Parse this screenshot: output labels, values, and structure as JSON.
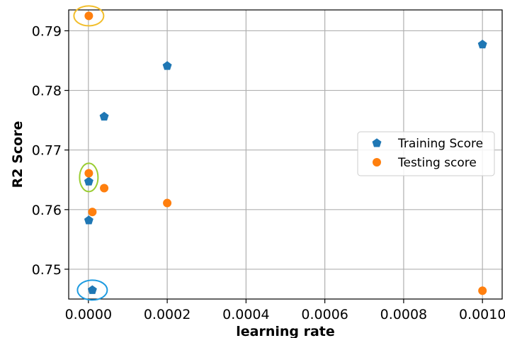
{
  "chart_data": {
    "type": "scatter",
    "title": "",
    "xlabel": "learning rate",
    "ylabel": "R2 Score",
    "xlim": [
      -5e-05,
      0.00105
    ],
    "ylim": [
      0.745,
      0.7935
    ],
    "grid": true,
    "x_ticks": [
      0.0,
      0.0002,
      0.0004,
      0.0006,
      0.0008,
      0.001
    ],
    "x_tick_labels": [
      "0.0000",
      "0.0002",
      "0.0004",
      "0.0006",
      "0.0008",
      "0.0010"
    ],
    "y_ticks": [
      0.75,
      0.76,
      0.77,
      0.78,
      0.79
    ],
    "y_tick_labels": [
      "0.75",
      "0.76",
      "0.77",
      "0.78",
      "0.79"
    ],
    "legend_position": "center-right",
    "series": [
      {
        "name": "Training Score",
        "marker": "pentagon",
        "color": "#1f77b4",
        "points": [
          {
            "x": 1e-06,
            "y": 0.7582
          },
          {
            "x": 1e-06,
            "y": 0.7647
          },
          {
            "x": 1e-05,
            "y": 0.7465
          },
          {
            "x": 4e-05,
            "y": 0.7756
          },
          {
            "x": 0.0002,
            "y": 0.7841
          },
          {
            "x": 0.001,
            "y": 0.7877
          }
        ]
      },
      {
        "name": "Testing score",
        "marker": "circle",
        "color": "#ff7f0e",
        "points": [
          {
            "x": 1e-06,
            "y": 0.7925
          },
          {
            "x": 1e-06,
            "y": 0.7661
          },
          {
            "x": 1e-05,
            "y": 0.7596
          },
          {
            "x": 4e-05,
            "y": 0.7636
          },
          {
            "x": 0.0002,
            "y": 0.7611
          },
          {
            "x": 0.001,
            "y": 0.7464
          }
        ]
      }
    ],
    "highlights": [
      {
        "name": "highlight-max-testing",
        "x": 1e-06,
        "y": 0.7925,
        "color": "#f2be2b"
      },
      {
        "name": "highlight-close-pair",
        "x": 1e-06,
        "y": 0.7654,
        "color": "#9acd32"
      },
      {
        "name": "highlight-min-training",
        "x": 1e-05,
        "y": 0.7465,
        "color": "#1e9be0"
      }
    ]
  }
}
